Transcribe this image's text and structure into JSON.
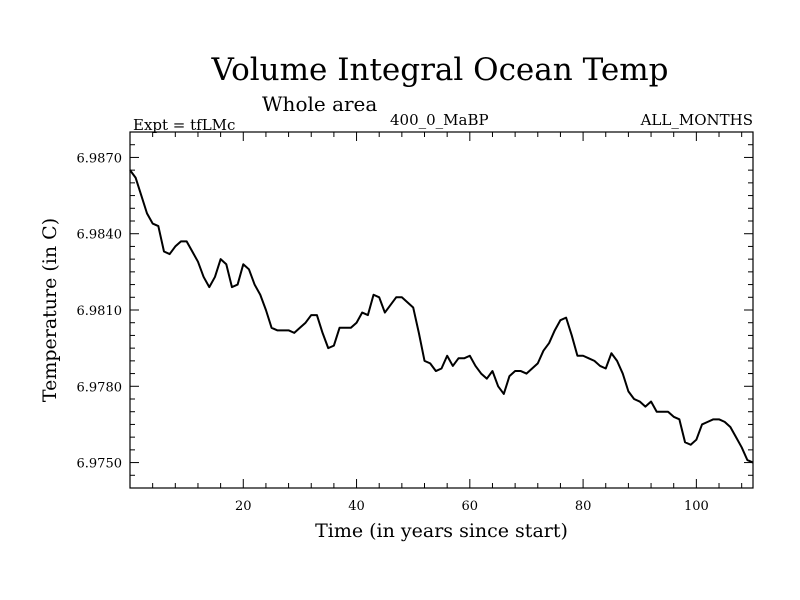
{
  "chart_data": {
    "type": "line",
    "title": "Volume Integral Ocean Temp",
    "subtitle": "Whole area",
    "annotations": {
      "experiment": "Expt = tfLMc",
      "period": "400_0_MaBP",
      "months": "ALL_MONTHS"
    },
    "xlabel": "Time (in years since start)",
    "ylabel": "Temperature (in C)",
    "xlim": [
      0,
      110
    ],
    "ylim": [
      6.974,
      6.988
    ],
    "x_ticks": [
      20,
      40,
      60,
      80,
      100
    ],
    "y_ticks": [
      6.975,
      6.978,
      6.981,
      6.984,
      6.987
    ],
    "y_tick_labels": [
      "6.9750",
      "6.9780",
      "6.9810",
      "6.9840",
      "6.9870"
    ],
    "series": [
      {
        "name": "Volume Integral Ocean Temp",
        "x": [
          0,
          1,
          2,
          3,
          4,
          5,
          6,
          7,
          8,
          9,
          10,
          11,
          12,
          13,
          14,
          15,
          16,
          17,
          18,
          19,
          20,
          21,
          22,
          23,
          24,
          25,
          26,
          27,
          28,
          29,
          30,
          31,
          32,
          33,
          34,
          35,
          36,
          37,
          38,
          39,
          40,
          41,
          42,
          43,
          44,
          45,
          46,
          47,
          48,
          49,
          50,
          51,
          52,
          53,
          54,
          55,
          56,
          57,
          58,
          59,
          60,
          61,
          62,
          63,
          64,
          65,
          66,
          67,
          68,
          69,
          70,
          71,
          72,
          73,
          74,
          75,
          76,
          77,
          78,
          79,
          80,
          81,
          82,
          83,
          84,
          85,
          86,
          87,
          88,
          89,
          90,
          91,
          92,
          93,
          94,
          95,
          96,
          97,
          98,
          99,
          100,
          101,
          102,
          103,
          104,
          105,
          106,
          107,
          108,
          109,
          110
        ],
        "values": [
          6.9865,
          6.9862,
          6.9855,
          6.9848,
          6.9844,
          6.9843,
          6.9833,
          6.9832,
          6.9835,
          6.9837,
          6.9837,
          6.9833,
          6.9829,
          6.9823,
          6.9819,
          6.9823,
          6.983,
          6.9828,
          6.9819,
          6.982,
          6.9828,
          6.9826,
          6.982,
          6.9816,
          6.981,
          6.9803,
          6.9802,
          6.9802,
          6.9802,
          6.9801,
          6.9803,
          6.9805,
          6.9808,
          6.9808,
          6.9801,
          6.9795,
          6.9796,
          6.9803,
          6.9803,
          6.9803,
          6.9805,
          6.9809,
          6.9808,
          6.9816,
          6.9815,
          6.9809,
          6.9812,
          6.9815,
          6.9815,
          6.9813,
          6.9811,
          6.9801,
          6.979,
          6.9789,
          6.9786,
          6.9787,
          6.9792,
          6.9788,
          6.9791,
          6.9791,
          6.9792,
          6.9788,
          6.9785,
          6.9783,
          6.9786,
          6.978,
          6.9777,
          6.9784,
          6.9786,
          6.9786,
          6.9785,
          6.9787,
          6.9789,
          6.9794,
          6.9797,
          6.9802,
          6.9806,
          6.9807,
          6.98,
          6.9792,
          6.9792,
          6.9791,
          6.979,
          6.9788,
          6.9787,
          6.9793,
          6.979,
          6.9785,
          6.9778,
          6.9775,
          6.9774,
          6.9772,
          6.9774,
          6.977,
          6.977,
          6.977,
          6.9768,
          6.9767,
          6.9758,
          6.9757,
          6.9759,
          6.9765,
          6.9766,
          6.9767,
          6.9767,
          6.9766,
          6.9764,
          6.976,
          6.9756,
          6.9751,
          6.975
        ]
      }
    ]
  }
}
